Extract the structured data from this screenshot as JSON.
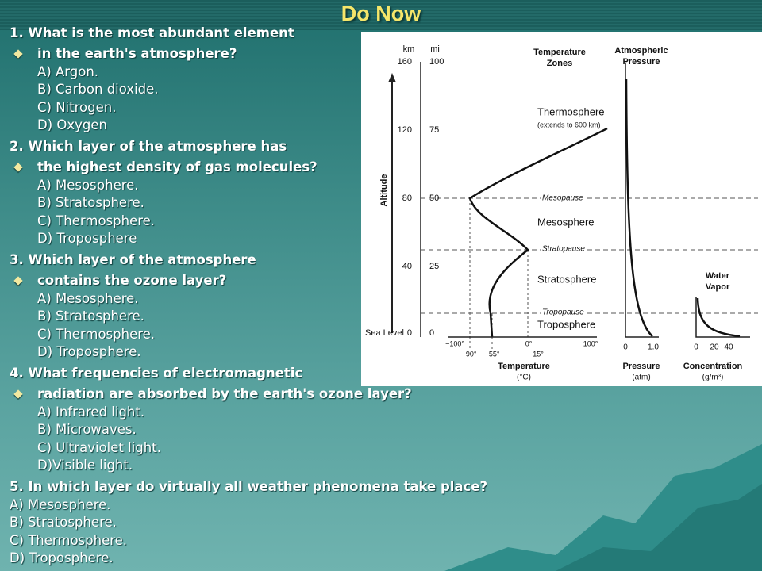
{
  "title": "Do Now",
  "questions": [
    {
      "stem": "1. What is the most abundant element",
      "bullet": "in the earth's atmosphere?",
      "options": [
        "A) Argon.",
        "B) Carbon dioxide.",
        "C) Nitrogen.",
        "D) Oxygen"
      ]
    },
    {
      "stem": "2. Which layer of the atmosphere has",
      "bullet": "the highest density of gas molecules?",
      "options": [
        "A) Mesosphere.",
        "B) Stratosphere.",
        "C) Thermosphere.",
        "D) Troposphere"
      ]
    },
    {
      "stem": "3. Which layer of the atmosphere",
      "bullet": "contains the ozone layer?",
      "options": [
        "A) Mesosphere.",
        "B) Stratosphere.",
        "C) Thermosphere.",
        "D) Troposphere."
      ]
    },
    {
      "stem": "4. What frequencies of electromagnetic",
      "bullet": "radiation are absorbed by the earth's ozone layer?",
      "options": [
        "A) Infrared light.",
        "B) Microwaves.",
        "C) Ultraviolet light.",
        "D)Visible light."
      ]
    },
    {
      "stem": "5. In which layer do virtually all weather phenomena take place?",
      "options": [
        "A) Mesosphere.",
        "B) Stratosphere.",
        "C) Thermosphere.",
        "D) Troposphere."
      ]
    }
  ],
  "figure": {
    "km_unit": "km",
    "mi_unit": "mi",
    "altitude": "Altitude",
    "sea_level": "Sea Level",
    "km_ticks": [
      "160",
      "120",
      "80",
      "40",
      "0"
    ],
    "mi_ticks": [
      "100",
      "75",
      "50",
      "25",
      "0"
    ],
    "zones_header": [
      "Temperature",
      "Zones"
    ],
    "pressure_header": [
      "Atmospheric",
      "Pressure"
    ],
    "zones": {
      "thermosphere": "Thermosphere",
      "thermosphere_note": "(extends to 600 km)",
      "mesosphere": "Mesosphere",
      "stratosphere": "Stratosphere",
      "troposphere": "Troposphere"
    },
    "pauses": {
      "mesopause": "Mesopause",
      "stratopause": "Stratopause",
      "tropopause": "Tropopause"
    },
    "temp_ticks": [
      "−100°",
      "0°",
      "100°"
    ],
    "temp_marks": [
      "−90°",
      "−55°",
      "15°"
    ],
    "temp_label": [
      "Temperature",
      "(°C)"
    ],
    "pressure_ticks": [
      "0",
      "1.0"
    ],
    "pressure_label": [
      "Pressure",
      "(atm)"
    ],
    "vapor_header": [
      "Water",
      "Vapor"
    ],
    "vapor_ticks": [
      "0",
      "20",
      "40"
    ],
    "vapor_label": [
      "Concentration",
      "(g/m³)"
    ]
  }
}
